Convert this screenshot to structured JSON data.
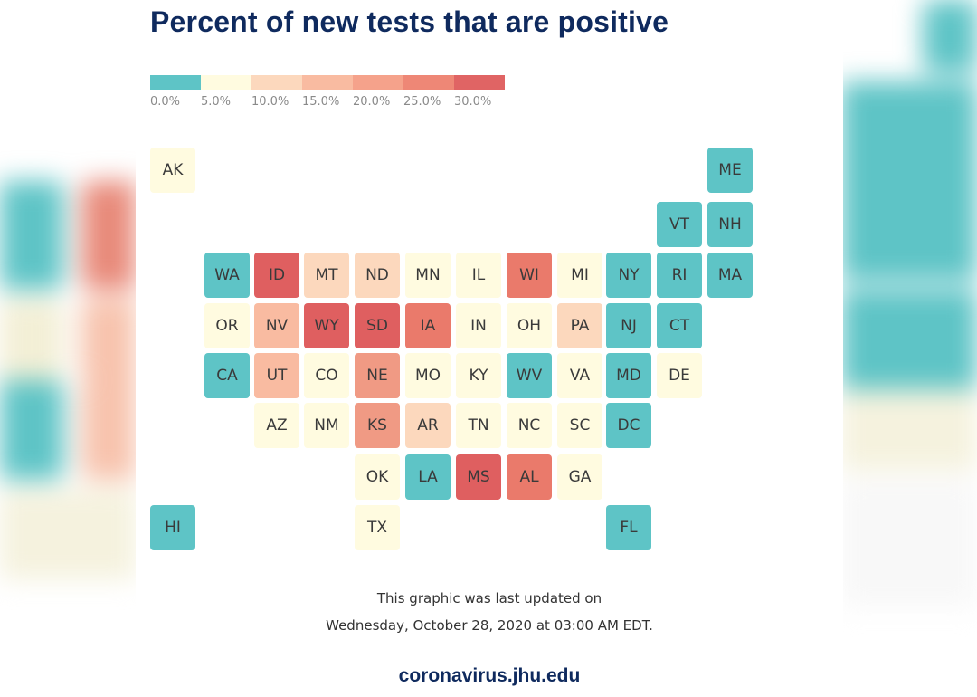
{
  "title": "Percent of new tests that are positive",
  "legend": {
    "colors": [
      "#5ec4c6",
      "#fffbe0",
      "#fcd8bd",
      "#f9bba1",
      "#f5a28b",
      "#ee8776",
      "#e06464"
    ],
    "labels": [
      "0.0%",
      "5.0%",
      "10.0%",
      "15.0%",
      "20.0%",
      "25.0%",
      "30.0%"
    ]
  },
  "palette": {
    "teal": "#5ec4c6",
    "pale_yellow": "#fffbe0",
    "peach": "#fcd8bd",
    "salmon": "#f9bba1",
    "coral": "#f09a84",
    "red_orange": "#ea7a6b",
    "red": "#df5f60"
  },
  "states": [
    {
      "abbr": "AK",
      "color": "#fffbe0"
    },
    {
      "abbr": "ME",
      "color": "#5ec4c6"
    },
    {
      "abbr": "VT",
      "color": "#5ec4c6"
    },
    {
      "abbr": "NH",
      "color": "#5ec4c6"
    },
    {
      "abbr": "WA",
      "color": "#5ec4c6"
    },
    {
      "abbr": "ID",
      "color": "#df5f60"
    },
    {
      "abbr": "MT",
      "color": "#fcd8bd"
    },
    {
      "abbr": "ND",
      "color": "#fcd8bd"
    },
    {
      "abbr": "MN",
      "color": "#fffbe0"
    },
    {
      "abbr": "IL",
      "color": "#fffbe0"
    },
    {
      "abbr": "WI",
      "color": "#ea7a6b"
    },
    {
      "abbr": "MI",
      "color": "#fffbe0"
    },
    {
      "abbr": "NY",
      "color": "#5ec4c6"
    },
    {
      "abbr": "RI",
      "color": "#5ec4c6"
    },
    {
      "abbr": "MA",
      "color": "#5ec4c6"
    },
    {
      "abbr": "OR",
      "color": "#fffbe0"
    },
    {
      "abbr": "NV",
      "color": "#f9bba1"
    },
    {
      "abbr": "WY",
      "color": "#df5f60"
    },
    {
      "abbr": "SD",
      "color": "#df5f60"
    },
    {
      "abbr": "IA",
      "color": "#ea7a6b"
    },
    {
      "abbr": "IN",
      "color": "#fffbe0"
    },
    {
      "abbr": "OH",
      "color": "#fffbe0"
    },
    {
      "abbr": "PA",
      "color": "#fcd8bd"
    },
    {
      "abbr": "NJ",
      "color": "#5ec4c6"
    },
    {
      "abbr": "CT",
      "color": "#5ec4c6"
    },
    {
      "abbr": "CA",
      "color": "#5ec4c6"
    },
    {
      "abbr": "UT",
      "color": "#f9bba1"
    },
    {
      "abbr": "CO",
      "color": "#fffbe0"
    },
    {
      "abbr": "NE",
      "color": "#f09a84"
    },
    {
      "abbr": "MO",
      "color": "#fffbe0"
    },
    {
      "abbr": "KY",
      "color": "#fffbe0"
    },
    {
      "abbr": "WV",
      "color": "#5ec4c6"
    },
    {
      "abbr": "VA",
      "color": "#fffbe0"
    },
    {
      "abbr": "MD",
      "color": "#5ec4c6"
    },
    {
      "abbr": "DE",
      "color": "#fffbe0"
    },
    {
      "abbr": "AZ",
      "color": "#fffbe0"
    },
    {
      "abbr": "NM",
      "color": "#fffbe0"
    },
    {
      "abbr": "KS",
      "color": "#f09a84"
    },
    {
      "abbr": "AR",
      "color": "#fcd8bd"
    },
    {
      "abbr": "TN",
      "color": "#fffbe0"
    },
    {
      "abbr": "NC",
      "color": "#fffbe0"
    },
    {
      "abbr": "SC",
      "color": "#fffbe0"
    },
    {
      "abbr": "DC",
      "color": "#5ec4c6"
    },
    {
      "abbr": "OK",
      "color": "#fffbe0"
    },
    {
      "abbr": "LA",
      "color": "#5ec4c6"
    },
    {
      "abbr": "MS",
      "color": "#df5f60"
    },
    {
      "abbr": "AL",
      "color": "#ea7a6b"
    },
    {
      "abbr": "GA",
      "color": "#fffbe0"
    },
    {
      "abbr": "HI",
      "color": "#5ec4c6"
    },
    {
      "abbr": "TX",
      "color": "#fffbe0"
    },
    {
      "abbr": "FL",
      "color": "#5ec4c6"
    }
  ],
  "footer": {
    "updated_line1": "This graphic was last updated on",
    "updated_line2": "Wednesday, October 28, 2020 at 03:00 AM EDT.",
    "site": "coronavirus.jhu.edu"
  }
}
